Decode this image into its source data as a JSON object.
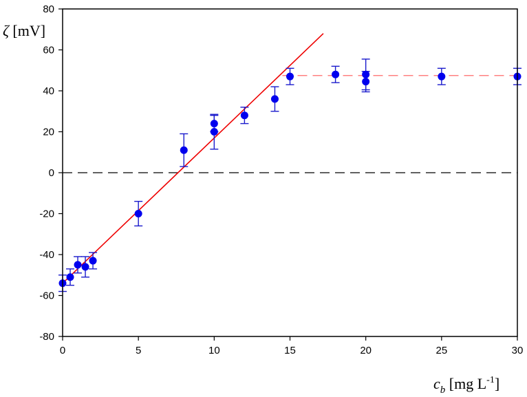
{
  "chart_data": {
    "type": "scatter",
    "title": "",
    "ylabel": {
      "symbol": "ζ",
      "unit": " [mV]"
    },
    "xlabel": {
      "symbol": "c",
      "subscript": "b",
      "unit_before_sup": " [mg L",
      "superscript": "-1",
      "unit_after_sup": "]"
    },
    "xlim": [
      0,
      30
    ],
    "ylim": [
      -80,
      80
    ],
    "xticks": [
      0,
      5,
      10,
      15,
      20,
      25,
      30
    ],
    "yticks": [
      -80,
      -60,
      -40,
      -20,
      0,
      20,
      40,
      60,
      80
    ],
    "grid": false,
    "colors": {
      "points": "#0000ee",
      "errorbars": "#1a1acc",
      "fit_line": "#ee0000",
      "plateau_line": "#ff8080",
      "zero_line": "#000000"
    },
    "series": [
      {
        "x": [
          0,
          0.5,
          1,
          1.5,
          2,
          5,
          8,
          10,
          10,
          12,
          14,
          15,
          18,
          20,
          20,
          25,
          30
        ],
        "y": [
          -54,
          -51,
          -45,
          -46,
          -43,
          -20,
          11,
          24,
          20,
          28,
          36,
          47,
          48,
          48,
          44.5,
          47,
          47
        ],
        "err": [
          4,
          4,
          4,
          5,
          4,
          6,
          8,
          4,
          8.5,
          4,
          6,
          4,
          4,
          7.5,
          5,
          4,
          4
        ]
      }
    ],
    "fit_line": {
      "x": [
        0,
        17.2
      ],
      "y": [
        -54,
        68
      ]
    },
    "plateau_line": {
      "x": [
        14.5,
        30
      ],
      "y": [
        47.5,
        47.5
      ]
    },
    "zero_line": {
      "y": 0
    }
  }
}
